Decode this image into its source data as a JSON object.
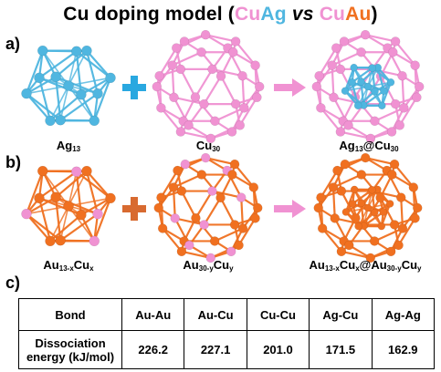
{
  "title": {
    "prefix": "Cu doping model (",
    "cu1": "Cu",
    "ag": "Ag",
    "vs": "vs",
    "cu2": "Cu",
    "au": "Au",
    "suffix": ")"
  },
  "panels": {
    "a": "a)",
    "b": "b)",
    "c": "c)"
  },
  "labels": {
    "ag13": {
      "base": "Ag",
      "sub": "13"
    },
    "cu30": {
      "base": "Cu",
      "sub": "30"
    },
    "ag13cu30": {
      "b1": "Ag",
      "s1": "13",
      "mid": "@Cu",
      "s2": "30"
    },
    "au13cu": {
      "b1": "Au",
      "s1": "13-x",
      "b2": "Cu",
      "s2": "x"
    },
    "au30cu": {
      "b1": "Au",
      "s1": "30-y",
      "b2": "Cu",
      "s2": "y"
    },
    "core_shell": {
      "b1": "Au",
      "s1": "13-x",
      "b2": "Cu",
      "s2": "x",
      "b3": "@Au",
      "s3": "30-y",
      "b4": "Cu",
      "s4": "y"
    }
  },
  "colors": {
    "ag": "#4fb6e0",
    "cu": "#f092d2",
    "au": "#f07020",
    "arrow": "#f092d2"
  },
  "icons": {
    "plus": "plus-icon",
    "arrow": "right-arrow-icon"
  },
  "table": {
    "headers": [
      "Bond",
      "Au-Au",
      "Au-Cu",
      "Cu-Cu",
      "Ag-Cu",
      "Ag-Ag"
    ],
    "row_label_line1": "Dissociation",
    "row_label_line2": "energy (kJ/mol)",
    "values": [
      "226.2",
      "227.1",
      "201.0",
      "171.5",
      "162.9"
    ]
  }
}
